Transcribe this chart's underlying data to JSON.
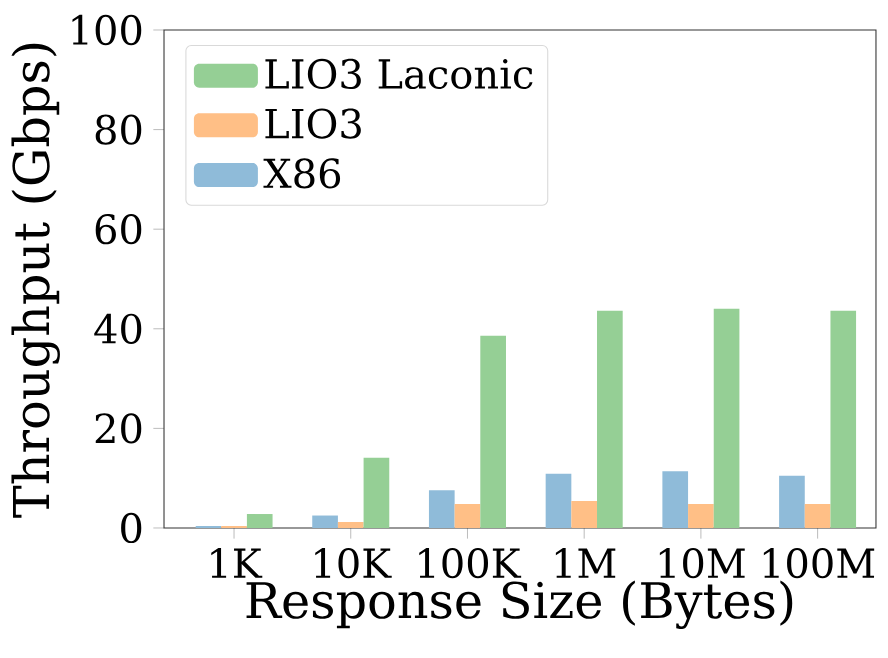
{
  "chart_data": {
    "type": "bar",
    "xlabel": "Response Size (Bytes)",
    "ylabel": "Throughput (Gbps)",
    "categories": [
      "1K",
      "10K",
      "100K",
      "1M",
      "10M",
      "100M"
    ],
    "series": [
      {
        "name": "X86",
        "color": "#8fbbd9",
        "values": [
          0.4,
          2.5,
          7.6,
          10.9,
          11.4,
          10.5
        ]
      },
      {
        "name": "LIO3",
        "color": "#ffbf86",
        "values": [
          0.4,
          1.2,
          4.8,
          5.4,
          4.8,
          4.8
        ]
      },
      {
        "name": "LIO3 Laconic",
        "color": "#95cf95",
        "values": [
          2.8,
          14.1,
          38.6,
          43.6,
          44.0,
          43.6
        ]
      }
    ],
    "ylim": [
      0,
      100
    ],
    "yticks": [
      0,
      20,
      40,
      60,
      80,
      100
    ],
    "legend": "top left"
  }
}
